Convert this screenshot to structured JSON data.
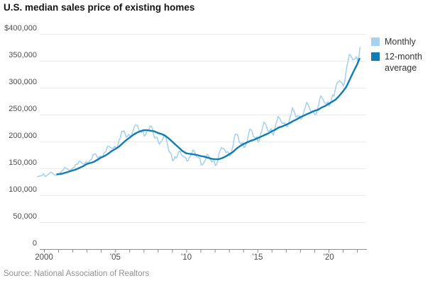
{
  "title": "U.S. median sales price of existing homes",
  "source": "Source: National Association of Realtors",
  "legend": [
    {
      "label": "Monthly",
      "color": "#a7d2ef"
    },
    {
      "label": "12-month average",
      "color": "#0f7cb4"
    }
  ],
  "chart_data": {
    "type": "line",
    "title": "U.S. median sales price of existing homes",
    "xlabel": "",
    "ylabel": "",
    "unit": "USD thousands",
    "xlim": [
      1999.5,
      2022.65
    ],
    "ylim": [
      0,
      400
    ],
    "grid": "horizontal",
    "legend_position": "top-right",
    "y_ticks": [
      {
        "value": 400,
        "label": "$400,000"
      },
      {
        "value": 350,
        "label": "350,000"
      },
      {
        "value": 300,
        "label": "300,000"
      },
      {
        "value": 250,
        "label": "250,000"
      },
      {
        "value": 200,
        "label": "200,000"
      },
      {
        "value": 150,
        "label": "150,000"
      },
      {
        "value": 100,
        "label": "100,000"
      },
      {
        "value": 50,
        "label": "50,000"
      },
      {
        "value": 0,
        "label": "0"
      }
    ],
    "x_ticks": {
      "minor_years": [
        2000,
        2001,
        2002,
        2003,
        2004,
        2005,
        2006,
        2007,
        2008,
        2009,
        2010,
        2011,
        2012,
        2013,
        2014,
        2015,
        2016,
        2017,
        2018,
        2019,
        2020,
        2021,
        2022
      ],
      "labeled": [
        {
          "year": 2000,
          "label": "2000"
        },
        {
          "year": 2005,
          "label": "’05"
        },
        {
          "year": 2010,
          "label": "’10"
        },
        {
          "year": 2015,
          "label": "’15"
        },
        {
          "year": 2020,
          "label": "’20"
        }
      ]
    },
    "series": [
      {
        "name": "Monthly",
        "color": "#a7d2ef",
        "x_start": 1999.5417,
        "x_step": 0.083333,
        "values": [
          135,
          135,
          136,
          136,
          137,
          140,
          136,
          135,
          137,
          139,
          140,
          143,
          142,
          140,
          139,
          137,
          138,
          139,
          140,
          141,
          144,
          146,
          148,
          152,
          151,
          149,
          148,
          146,
          147,
          149,
          151,
          152,
          157,
          158,
          158,
          163,
          163,
          161,
          159,
          158,
          159,
          163,
          160,
          161,
          164,
          166,
          169,
          176,
          177,
          177,
          172,
          170,
          171,
          173,
          171,
          172,
          178,
          180,
          183,
          191,
          191,
          190,
          188,
          187,
          188,
          191,
          189,
          188,
          195,
          203,
          207,
          219,
          218,
          220,
          213,
          208,
          210,
          213,
          211,
          209,
          217,
          222,
          229,
          231,
          230,
          225,
          219,
          218,
          217,
          221,
          210,
          212,
          217,
          220,
          222,
          229,
          228,
          224,
          211,
          206,
          208,
          207,
          199,
          195,
          200,
          201,
          206,
          213,
          210,
          201,
          190,
          181,
          180,
          175,
          164,
          166,
          172,
          169,
          173,
          181,
          182,
          177,
          174,
          172,
          171,
          170,
          164,
          164,
          170,
          173,
          177,
          184,
          183,
          178,
          172,
          171,
          170,
          169,
          157,
          156,
          160,
          163,
          168,
          176,
          175,
          170,
          166,
          162,
          164,
          164,
          155,
          157,
          164,
          177,
          183,
          189,
          187,
          187,
          184,
          179,
          181,
          180,
          173,
          175,
          184,
          193,
          208,
          214,
          213,
          212,
          200,
          197,
          196,
          198,
          189,
          189,
          198,
          201,
          213,
          223,
          222,
          219,
          210,
          208,
          206,
          209,
          199,
          202,
          212,
          219,
          228,
          236,
          234,
          229,
          221,
          219,
          221,
          224,
          215,
          212,
          222,
          232,
          238,
          247,
          244,
          240,
          235,
          233,
          235,
          233,
          228,
          228,
          236,
          245,
          252,
          263,
          258,
          253,
          245,
          247,
          248,
          247,
          241,
          243,
          250,
          258,
          265,
          273,
          269,
          265,
          258,
          255,
          257,
          254,
          250,
          251,
          259,
          267,
          278,
          285,
          281,
          278,
          272,
          271,
          271,
          274,
          266,
          270,
          280,
          287,
          284,
          295,
          305,
          310,
          311,
          313,
          310,
          309,
          303,
          310,
          326,
          341,
          350,
          362,
          360,
          356,
          352,
          353,
          354,
          358,
          350,
          357,
          375
        ]
      },
      {
        "name": "12-month average",
        "color": "#0f7cb4",
        "points": [
          [
            2000.92,
            139
          ],
          [
            2001.25,
            140
          ],
          [
            2001.5,
            142
          ],
          [
            2001.75,
            144
          ],
          [
            2002.0,
            146
          ],
          [
            2002.25,
            148
          ],
          [
            2002.5,
            151
          ],
          [
            2002.75,
            154
          ],
          [
            2003.0,
            158
          ],
          [
            2003.25,
            160
          ],
          [
            2003.5,
            162
          ],
          [
            2003.75,
            166
          ],
          [
            2004.0,
            170
          ],
          [
            2004.25,
            173
          ],
          [
            2004.5,
            177
          ],
          [
            2004.75,
            182
          ],
          [
            2005.0,
            186
          ],
          [
            2005.25,
            190
          ],
          [
            2005.5,
            196
          ],
          [
            2005.75,
            202
          ],
          [
            2006.0,
            207
          ],
          [
            2006.25,
            212
          ],
          [
            2006.5,
            216
          ],
          [
            2006.75,
            219
          ],
          [
            2007.0,
            221
          ],
          [
            2007.25,
            221
          ],
          [
            2007.5,
            220
          ],
          [
            2007.75,
            219
          ],
          [
            2008.0,
            216
          ],
          [
            2008.25,
            214
          ],
          [
            2008.5,
            211
          ],
          [
            2008.75,
            206
          ],
          [
            2009.0,
            200
          ],
          [
            2009.25,
            194
          ],
          [
            2009.5,
            188
          ],
          [
            2009.75,
            182
          ],
          [
            2010.0,
            178
          ],
          [
            2010.25,
            177
          ],
          [
            2010.5,
            176
          ],
          [
            2010.75,
            175
          ],
          [
            2011.0,
            173
          ],
          [
            2011.25,
            172
          ],
          [
            2011.5,
            170
          ],
          [
            2011.75,
            168
          ],
          [
            2012.0,
            167
          ],
          [
            2012.25,
            167
          ],
          [
            2012.5,
            169
          ],
          [
            2012.75,
            172
          ],
          [
            2013.0,
            176
          ],
          [
            2013.25,
            180
          ],
          [
            2013.5,
            186
          ],
          [
            2013.75,
            191
          ],
          [
            2014.0,
            195
          ],
          [
            2014.25,
            198
          ],
          [
            2014.5,
            201
          ],
          [
            2014.75,
            203
          ],
          [
            2015.0,
            206
          ],
          [
            2015.25,
            209
          ],
          [
            2015.5,
            212
          ],
          [
            2015.75,
            215
          ],
          [
            2016.0,
            219
          ],
          [
            2016.25,
            222
          ],
          [
            2016.5,
            226
          ],
          [
            2016.75,
            228
          ],
          [
            2017.0,
            231
          ],
          [
            2017.25,
            234
          ],
          [
            2017.5,
            238
          ],
          [
            2017.75,
            241
          ],
          [
            2018.0,
            245
          ],
          [
            2018.25,
            248
          ],
          [
            2018.5,
            251
          ],
          [
            2018.75,
            254
          ],
          [
            2019.0,
            257
          ],
          [
            2019.25,
            259
          ],
          [
            2019.5,
            263
          ],
          [
            2019.75,
            266
          ],
          [
            2020.0,
            270
          ],
          [
            2020.25,
            274
          ],
          [
            2020.5,
            278
          ],
          [
            2020.75,
            285
          ],
          [
            2021.0,
            293
          ],
          [
            2021.25,
            302
          ],
          [
            2021.5,
            316
          ],
          [
            2021.75,
            330
          ],
          [
            2022.0,
            343
          ],
          [
            2022.17,
            354
          ]
        ]
      }
    ]
  }
}
